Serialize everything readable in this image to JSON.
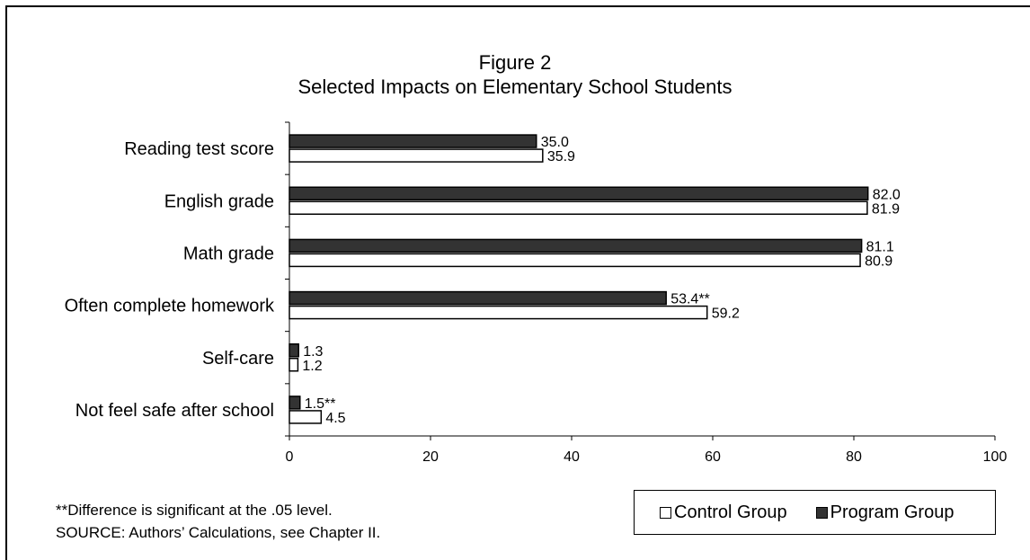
{
  "chart_data": {
    "type": "bar",
    "orientation": "horizontal",
    "title": "Figure 2",
    "subtitle": "Selected Impacts on Elementary School Students",
    "categories": [
      "Reading test score",
      "English grade",
      "Math grade",
      "Often complete homework",
      "Self-care",
      "Not feel safe after school"
    ],
    "series": [
      {
        "name": "Program Group",
        "color": "#333333",
        "values": [
          35.0,
          82.0,
          81.1,
          53.4,
          1.3,
          1.5
        ],
        "labels": [
          "35.0",
          "82.0",
          "81.1",
          "53.4**",
          "1.3",
          "1.5**"
        ]
      },
      {
        "name": "Control Group",
        "color": "#ffffff",
        "values": [
          35.9,
          81.9,
          80.9,
          59.2,
          1.2,
          4.5
        ],
        "labels": [
          "35.9",
          "81.9",
          "80.9",
          "59.2",
          "1.2",
          "4.5"
        ]
      }
    ],
    "xlim": [
      0,
      100
    ],
    "xticks": [
      "0",
      "20",
      "40",
      "60",
      "80",
      "100"
    ],
    "grid": false,
    "legend_position": "bottom-right"
  },
  "footnotes": {
    "significance": "**Difference is significant at the .05 level.",
    "source": "SOURCE: Authors’ Calculations, see Chapter II."
  }
}
